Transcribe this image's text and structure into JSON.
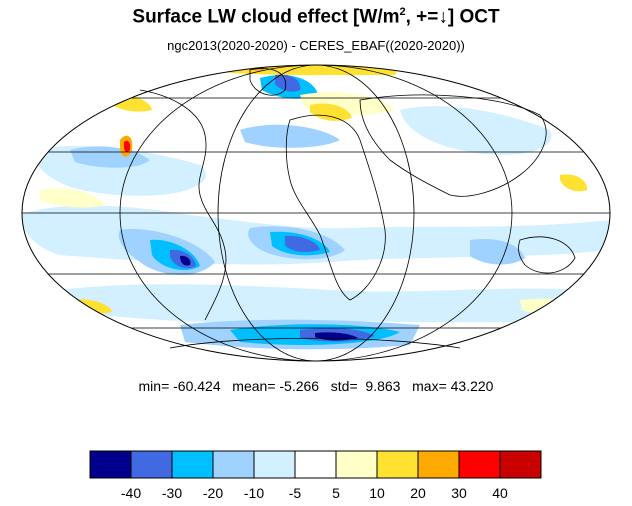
{
  "header": {
    "title_prefix": "Surface LW cloud effect [W/m",
    "title_sup": "2",
    "title_suffix": ", +=↓]  OCT",
    "subtitle": "ngc2013(2020-2020) - CERES_EBAF((2020-2020))"
  },
  "stats": {
    "min_label": "min=",
    "min": "-60.424",
    "mean_label": "mean=",
    "mean": "-5.266",
    "std_label": "std=",
    "std": "9.863",
    "max_label": "max=",
    "max": "43.220"
  },
  "colorbar": {
    "colors": [
      "#00008b",
      "#4169e1",
      "#00bfff",
      "#a0d2ff",
      "#d2f0ff",
      "#ffffff",
      "#ffffc8",
      "#ffe132",
      "#ffaa00",
      "#ff0000",
      "#c80000"
    ],
    "tick_labels": [
      "-40",
      "-30",
      "-20",
      "-10",
      "-5",
      "5",
      "10",
      "20",
      "30",
      "40"
    ]
  },
  "map": {
    "projection": "Mollweide",
    "background_color": "#ffffff",
    "grid_color": "#000000",
    "field_palette": {
      "light_blue": "#d2f0ff",
      "medium_blue": "#a0d2ff",
      "blue": "#00bfff",
      "royal_blue": "#4169e1",
      "dark_blue": "#00008b",
      "light_yellow": "#ffffc8",
      "yellow": "#ffe132",
      "orange": "#ffaa00",
      "red": "#ff0000"
    }
  }
}
